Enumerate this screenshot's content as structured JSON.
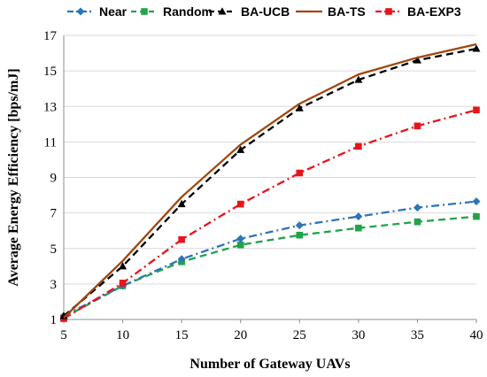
{
  "chart_data": {
    "type": "line",
    "title": "",
    "xlabel": "Number of Gateway UAVs",
    "ylabel": "Average Energy Efficiency  [bps/mJ]",
    "x": [
      5,
      10,
      15,
      20,
      25,
      30,
      35,
      40
    ],
    "xlim": [
      5,
      40
    ],
    "ylim": [
      1,
      17
    ],
    "xticks": [
      5,
      10,
      15,
      20,
      25,
      30,
      35,
      40
    ],
    "yticks": [
      1,
      3,
      5,
      7,
      9,
      11,
      13,
      15,
      17
    ],
    "grid": "horizontal",
    "legend_position": "top",
    "series": [
      {
        "name": "Near",
        "color": "#2E75B6",
        "dash": "dash-dot",
        "marker": "diamond",
        "values": [
          1.2,
          2.9,
          4.4,
          5.55,
          6.3,
          6.8,
          7.3,
          7.65
        ]
      },
      {
        "name": "Random",
        "color": "#21A34A",
        "dash": "dash",
        "marker": "square",
        "values": [
          1.1,
          2.9,
          4.25,
          5.2,
          5.75,
          6.15,
          6.5,
          6.8
        ]
      },
      {
        "name": "BA-UCB",
        "color": "#000000",
        "dash": "dash",
        "marker": "triangle",
        "values": [
          1.2,
          4.0,
          7.5,
          10.55,
          12.9,
          14.5,
          15.6,
          16.25
        ]
      },
      {
        "name": "BA-TS",
        "color": "#A0460F",
        "dash": "solid",
        "marker": "circle",
        "values": [
          1.1,
          4.3,
          7.9,
          10.85,
          13.15,
          14.8,
          15.75,
          16.5
        ]
      },
      {
        "name": "BA-EXP3",
        "color": "#E8141B",
        "dash": "dash-dot",
        "marker": "square",
        "values": [
          1.05,
          3.05,
          5.5,
          7.5,
          9.25,
          10.75,
          11.9,
          12.8
        ]
      }
    ]
  }
}
